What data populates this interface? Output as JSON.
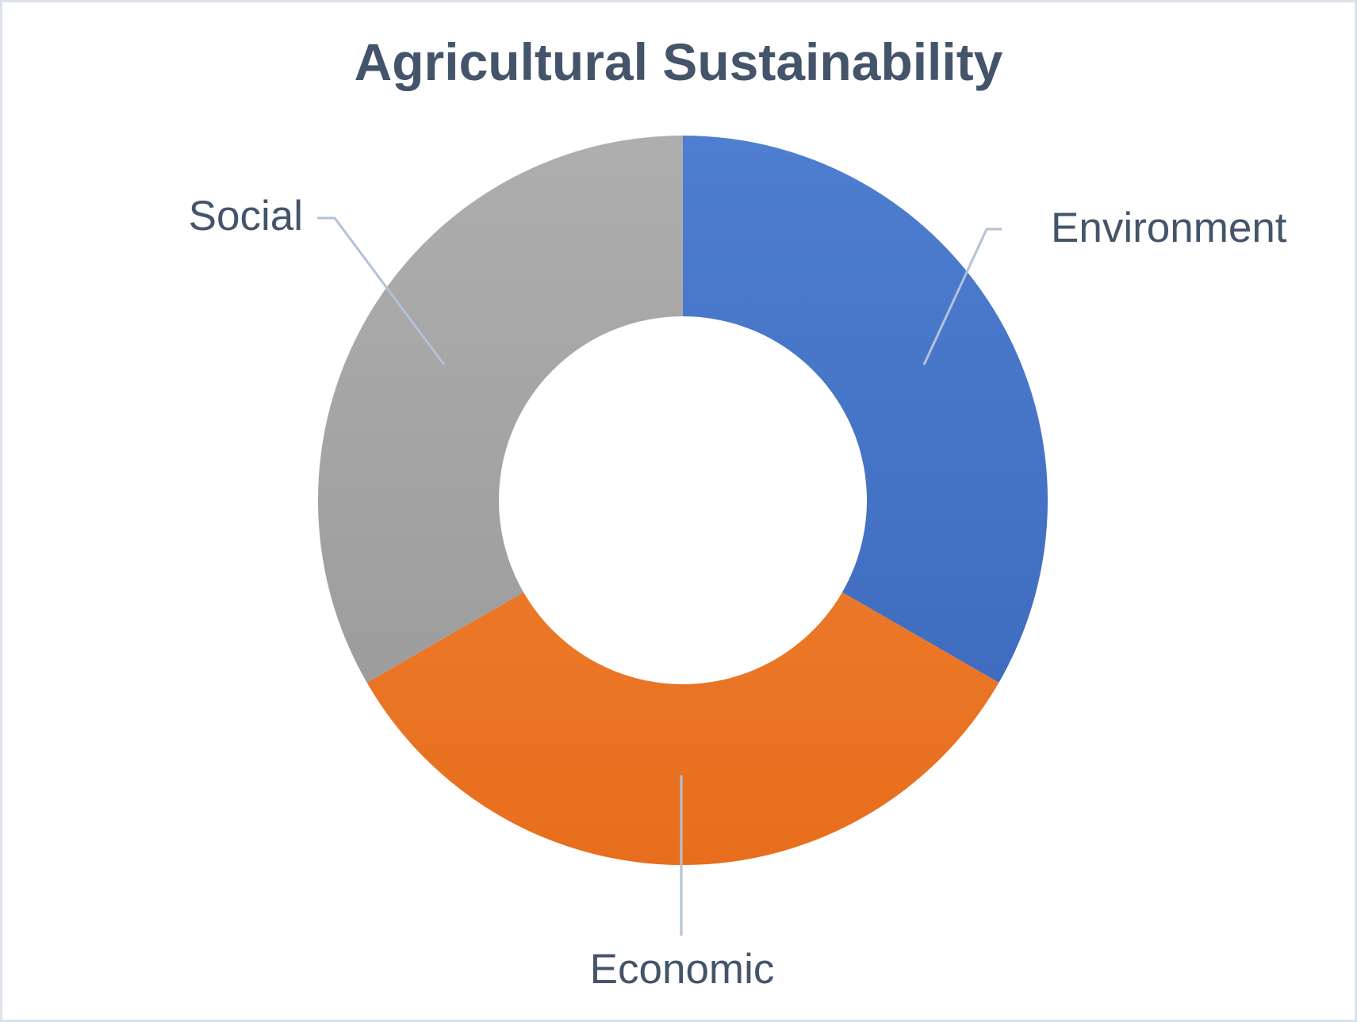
{
  "title": "Agricultural Sustainability",
  "chart_data": {
    "type": "pie",
    "subtype": "donut",
    "title": "Agricultural Sustainability",
    "categories": [
      "Environment",
      "Economic",
      "Social"
    ],
    "values": [
      33.33,
      33.33,
      33.33
    ],
    "start_angle_deg": 0,
    "direction": "clockwise",
    "inner_radius_ratio": 0.505,
    "legend_position": "none",
    "label_style": "category-name-outside-with-leader-lines"
  },
  "series_colors": {
    "Environment": {
      "base": "#4472C4",
      "gradient_top": "#4E7ED0",
      "gradient_bottom": "#3A66B8"
    },
    "Economic": {
      "base": "#ED7D31",
      "gradient_top": "#F0893E",
      "gradient_bottom": "#E76E1C"
    },
    "Social": {
      "base": "#A5A5A5",
      "gradient_top": "#AEAEAE",
      "gradient_bottom": "#979797"
    }
  },
  "colors": {
    "text": "#44546A",
    "leader_line": "#B3C2D8",
    "border": "#DCE2EC",
    "background": "#FFFFFF"
  }
}
